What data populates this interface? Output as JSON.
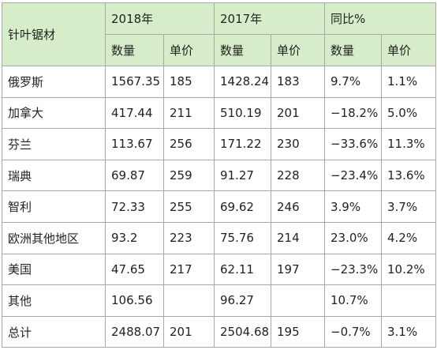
{
  "header": {
    "first_col": "针叶锯材",
    "groups": [
      "2018年",
      "2017年",
      "同比%"
    ],
    "sub": [
      "数量",
      "单价",
      "数量",
      "单价",
      "数量",
      "单价"
    ]
  },
  "rows": [
    {
      "name": "俄罗斯",
      "c": [
        "1567.35",
        "185",
        "1428.24",
        "183",
        "9.7%",
        "1.1%"
      ]
    },
    {
      "name": "加拿大",
      "c": [
        "417.44",
        "211",
        "510.19",
        "201",
        "−18.2%",
        "5.0%"
      ]
    },
    {
      "name": "芬兰",
      "c": [
        "113.67",
        "256",
        "171.22",
        "230",
        "−33.6%",
        "11.3%"
      ]
    },
    {
      "name": "瑞典",
      "c": [
        "69.87",
        "259",
        "91.27",
        "228",
        "−23.4%",
        "13.6%"
      ]
    },
    {
      "name": "智利",
      "c": [
        "72.33",
        "255",
        "69.62",
        "246",
        "3.9%",
        "3.7%"
      ]
    },
    {
      "name": "欧洲其他地区",
      "c": [
        "93.2",
        "223",
        "75.76",
        "214",
        "23.0%",
        "4.2%"
      ]
    },
    {
      "name": "美国",
      "c": [
        "47.65",
        "217",
        "62.11",
        "197",
        "−23.3%",
        "10.2%"
      ]
    },
    {
      "name": "其他",
      "c": [
        "106.56",
        "",
        "96.27",
        "",
        "10.7%",
        ""
      ]
    },
    {
      "name": "总计",
      "c": [
        "2488.07",
        "201",
        "2504.68",
        "195",
        "−0.7%",
        "3.1%"
      ]
    }
  ]
}
